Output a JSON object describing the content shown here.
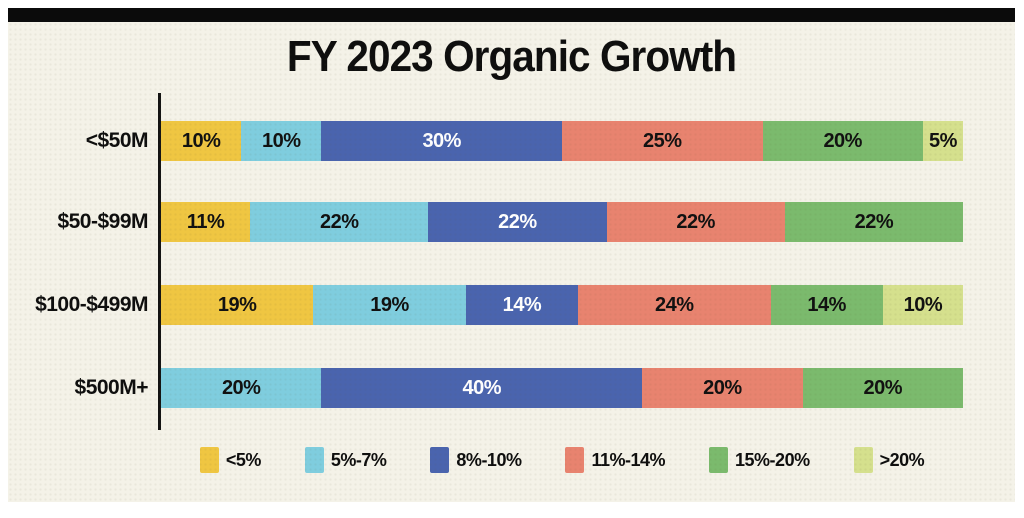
{
  "title": "FY 2023 Organic Growth",
  "colors": {
    "panel_background": "#F4F2E8",
    "page_background": "#FFFFFF",
    "top_bar": "#0B0B0B",
    "text": "#0E0E0E",
    "axis": "#131313"
  },
  "chart_data": {
    "type": "bar",
    "orientation": "horizontal",
    "stacked": true,
    "title": "FY 2023 Organic Growth",
    "xlabel": "",
    "ylabel": "",
    "value_suffix": "%",
    "axis_range": [
      0,
      100
    ],
    "grid": false,
    "legend_position": "bottom",
    "categories": [
      "<$50M",
      "$50-$99M",
      "$100-$499M",
      "$500M+"
    ],
    "series": [
      {
        "name": "<5%",
        "color": "#EFC642",
        "label_color": "#111111",
        "values": [
          10,
          11,
          19,
          0
        ]
      },
      {
        "name": "5%-7%",
        "color": "#7FCDDE",
        "label_color": "#111111",
        "values": [
          10,
          22,
          19,
          20
        ]
      },
      {
        "name": "8%-10%",
        "color": "#4A64AE",
        "label_color": "#FFFFFF",
        "values": [
          30,
          22,
          14,
          40
        ]
      },
      {
        "name": "11%-14%",
        "color": "#E8836F",
        "label_color": "#111111",
        "values": [
          25,
          22,
          24,
          20
        ]
      },
      {
        "name": "15%-20%",
        "color": "#7BBA6D",
        "label_color": "#111111",
        "values": [
          20,
          22,
          14,
          20
        ]
      },
      {
        "name": ">20%",
        "color": "#D5E08D",
        "label_color": "#111111",
        "values": [
          5,
          0,
          10,
          0
        ]
      }
    ]
  }
}
